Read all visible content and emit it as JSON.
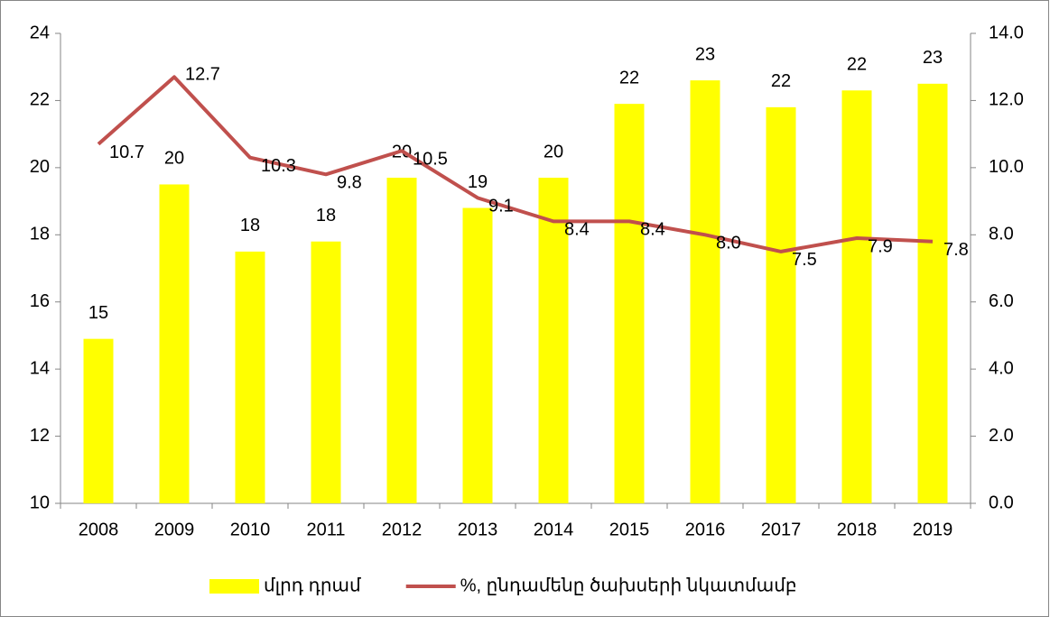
{
  "chart_data": {
    "type": "bar_line",
    "categories": [
      "2008",
      "2009",
      "2010",
      "2011",
      "2012",
      "2013",
      "2014",
      "2015",
      "2016",
      "2017",
      "2018",
      "2019"
    ],
    "series": [
      {
        "name": "մլրդ դրամ",
        "color": "#ffff00",
        "type": "bar",
        "values": [
          14.9,
          19.5,
          17.5,
          17.8,
          19.7,
          18.8,
          19.7,
          21.9,
          22.6,
          21.8,
          22.3,
          22.5
        ],
        "value_labels": [
          "15",
          "20",
          "18",
          "18",
          "20",
          "19",
          "20",
          "22",
          "23",
          "22",
          "22",
          "23"
        ]
      },
      {
        "name": "%, ընդամենը ծախսերի նկատմամբ",
        "color": "#c0504d",
        "type": "line",
        "axis": "y2",
        "values": [
          10.7,
          12.7,
          10.3,
          9.8,
          10.5,
          9.1,
          8.4,
          8.4,
          8.0,
          7.5,
          7.9,
          7.8
        ],
        "value_labels": [
          "10.7",
          "12.7",
          "10.3",
          "9.8",
          "10.5",
          "9.1",
          "8.4",
          "8.4",
          "8.0",
          "7.5",
          "7.9",
          "7.8"
        ]
      }
    ],
    "ylim": [
      10,
      24
    ],
    "yticks": [
      10,
      12,
      14,
      16,
      18,
      20,
      22,
      24
    ],
    "y2lim": [
      0,
      14
    ],
    "y2ticks": [
      {
        "value": 0,
        "label": "0.0"
      },
      {
        "value": 2,
        "label": "2.0"
      },
      {
        "value": 4,
        "label": "4.0"
      },
      {
        "value": 6,
        "label": "6.0"
      },
      {
        "value": 8,
        "label": "8.0"
      },
      {
        "value": 10,
        "label": "10.0"
      },
      {
        "value": 12,
        "label": "12.0"
      },
      {
        "value": 14,
        "label": "14.0"
      }
    ],
    "grid": false,
    "legend": "bottom"
  }
}
